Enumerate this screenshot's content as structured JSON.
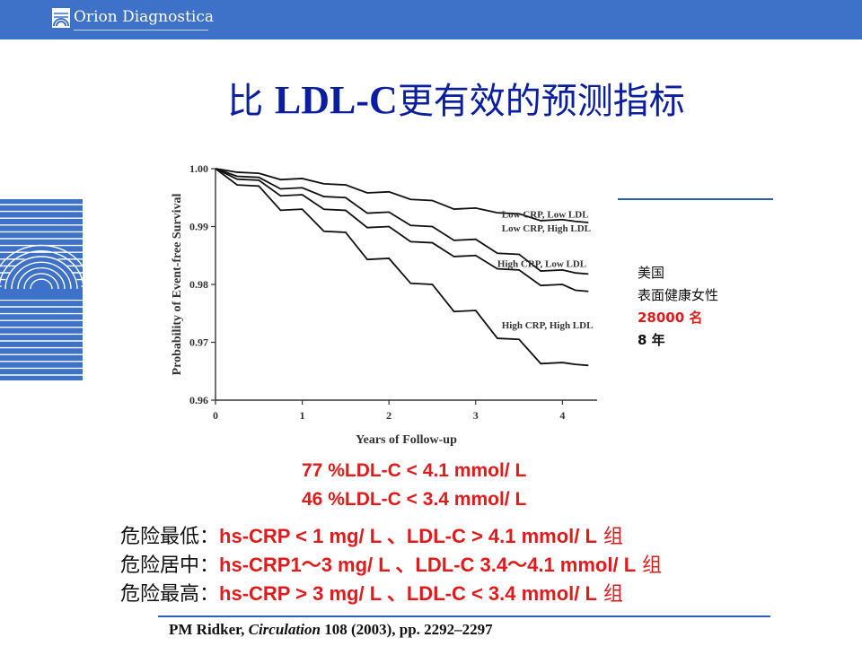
{
  "header": {
    "brand": "Orion Diagnostica"
  },
  "slide": {
    "title_prefix": "比 ",
    "title_latin": "LDL-C",
    "title_suffix": "更有效的预测指标"
  },
  "sample_note": {
    "line1": "美国",
    "line2": "表面健康女性",
    "count": "28000",
    "count_unit": " 名",
    "years": "8",
    "years_unit": " 年"
  },
  "shares": [
    "77 %LDL-C < 4.1 mmol/ L",
    "46 %LDL-C < 3.4 mmol/ L"
  ],
  "risk_groups": [
    {
      "label": "危险最低：",
      "criteria": "hs-CRP < 1 mg/ L 、LDL-C > 4.1 mmol/ L",
      "suffix": " 组"
    },
    {
      "label": "危险居中：",
      "criteria": "hs-CRP1～3 mg/ L 、LDL-C 3.4～4.1 mmol/ L",
      "suffix": " 组"
    },
    {
      "label": "危险最高：",
      "criteria": "hs-CRP > 3 mg/ L 、LDL-C < 3.4 mmol/ L",
      "suffix": " 组"
    }
  ],
  "citation": {
    "author": "PM Ridker, ",
    "journal": "Circulation",
    "detail": " 108 (2003), pp. 2292–2297"
  },
  "colors": {
    "brand_blue": "#3d72c8",
    "title_blue": "#0b1f9e",
    "highlight_red": "#e01b1b",
    "rule_blue": "#2a5fb4"
  },
  "icons": {
    "logo": "sunrise-logo-icon",
    "emblem": "sunrise-emblem"
  },
  "chart_data": {
    "type": "line",
    "title": "",
    "xlabel": "Years of Follow-up",
    "ylabel": "Probability of Event-free Survival",
    "xlim": [
      0,
      4.4
    ],
    "ylim": [
      0.96,
      1.0
    ],
    "xticks": [
      0,
      1,
      2,
      3,
      4
    ],
    "yticks": [
      0.96,
      0.97,
      0.98,
      0.99,
      1.0
    ],
    "ytick_labels": [
      "0.96",
      "0.97",
      "0.98",
      "0.99",
      "1.00"
    ],
    "grid": false,
    "series": [
      {
        "name": "Low CRP, Low LDL",
        "x": [
          0,
          0.5,
          1.0,
          1.5,
          2.0,
          2.5,
          3.0,
          3.5,
          4.0,
          4.3
        ],
        "y": [
          1.0,
          0.9992,
          0.9983,
          0.9972,
          0.996,
          0.9945,
          0.9932,
          0.9922,
          0.9912,
          0.9907
        ]
      },
      {
        "name": "Low CRP, High LDL",
        "x": [
          0,
          0.5,
          1.0,
          1.5,
          2.0,
          2.5,
          3.0,
          3.5,
          4.0,
          4.3
        ],
        "y": [
          1.0,
          0.9985,
          0.9967,
          0.995,
          0.9925,
          0.99,
          0.9878,
          0.9852,
          0.9825,
          0.9818
        ]
      },
      {
        "name": "High CRP, Low LDL",
        "x": [
          0,
          0.5,
          1.0,
          1.5,
          2.0,
          2.5,
          3.0,
          3.5,
          4.0,
          4.3
        ],
        "y": [
          1.0,
          0.998,
          0.9955,
          0.9928,
          0.99,
          0.9872,
          0.985,
          0.9825,
          0.98,
          0.9788
        ]
      },
      {
        "name": "High CRP, High LDL",
        "x": [
          0,
          0.5,
          1.0,
          1.5,
          2.0,
          2.5,
          3.0,
          3.5,
          4.0,
          4.3
        ],
        "y": [
          1.0,
          0.997,
          0.993,
          0.989,
          0.9845,
          0.98,
          0.9755,
          0.9705,
          0.9665,
          0.966
        ]
      }
    ]
  }
}
